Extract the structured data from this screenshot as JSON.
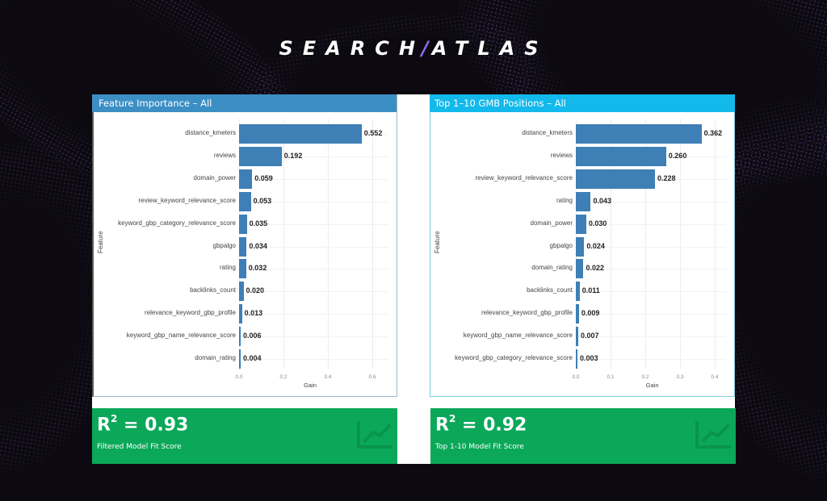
{
  "brand": {
    "logo_left": "SEARCH",
    "logo_slash": "/",
    "logo_right": "ATLAS",
    "accent_color": "#8c6cf0"
  },
  "colors": {
    "left_header": "#3b8fc4",
    "right_header": "#12b9ea",
    "bar": "#3e7fb6",
    "score_card": "#0ba85a"
  },
  "panels": [
    {
      "title": "Feature Importance – All",
      "ylabel": "Feature",
      "xlabel": "Gain",
      "ticks": [
        "0.0",
        "0.2",
        "0.4",
        "0.6"
      ],
      "score": {
        "label": "R",
        "sup": "2",
        "value": " = 0.93",
        "caption": "Filtered Model Fit Score"
      }
    },
    {
      "title": "Top 1–10 GMB Positions – All",
      "ylabel": "Feature",
      "xlabel": "Gain",
      "ticks": [
        "0.0",
        "0.1",
        "0.2",
        "0.3",
        "0.4"
      ],
      "score": {
        "label": "R",
        "sup": "2",
        "value": " = 0.92",
        "caption": "Top 1-10 Model Fit Score"
      }
    }
  ],
  "chart_data": [
    {
      "type": "bar",
      "orientation": "horizontal",
      "title": "Feature Importance – All",
      "xlabel": "Gain",
      "ylabel": "Feature",
      "xlim": [
        0,
        0.65
      ],
      "xticks": [
        0.0,
        0.2,
        0.4,
        0.6
      ],
      "grid": true,
      "categories": [
        "distance_kmeters",
        "reviews",
        "domain_power",
        "review_keyword_relevance_score",
        "keyword_gbp_category_relevance_score",
        "gbpalgo",
        "rating",
        "backlinks_count",
        "relevance_keyword_gbp_profile",
        "keyword_gbp_name_relevance_score",
        "domain_rating"
      ],
      "values": [
        0.552,
        0.192,
        0.059,
        0.053,
        0.035,
        0.034,
        0.032,
        0.02,
        0.013,
        0.006,
        0.004
      ],
      "labels": [
        "0.552",
        "0.192",
        "0.059",
        "0.053",
        "0.035",
        "0.034",
        "0.032",
        "0.020",
        "0.013",
        "0.006",
        "0.004"
      ]
    },
    {
      "type": "bar",
      "orientation": "horizontal",
      "title": "Top 1–10 GMB Positions – All",
      "xlabel": "Gain",
      "ylabel": "Feature",
      "xlim": [
        0,
        0.41
      ],
      "xticks": [
        0.0,
        0.1,
        0.2,
        0.3,
        0.4
      ],
      "grid": true,
      "categories": [
        "distance_kmeters",
        "reviews",
        "review_keyword_relevance_score",
        "rating",
        "domain_power",
        "gbpalgo",
        "domain_rating",
        "backlinks_count",
        "relevance_keyword_gbp_profile",
        "keyword_gbp_name_relevance_score",
        "keyword_gbp_category_relevance_score"
      ],
      "values": [
        0.362,
        0.26,
        0.228,
        0.043,
        0.03,
        0.024,
        0.022,
        0.011,
        0.009,
        0.007,
        0.003
      ],
      "labels": [
        "0.362",
        "0.260",
        "0.228",
        "0.043",
        "0.030",
        "0.024",
        "0.022",
        "0.011",
        "0.009",
        "0.007",
        "0.003"
      ]
    }
  ]
}
